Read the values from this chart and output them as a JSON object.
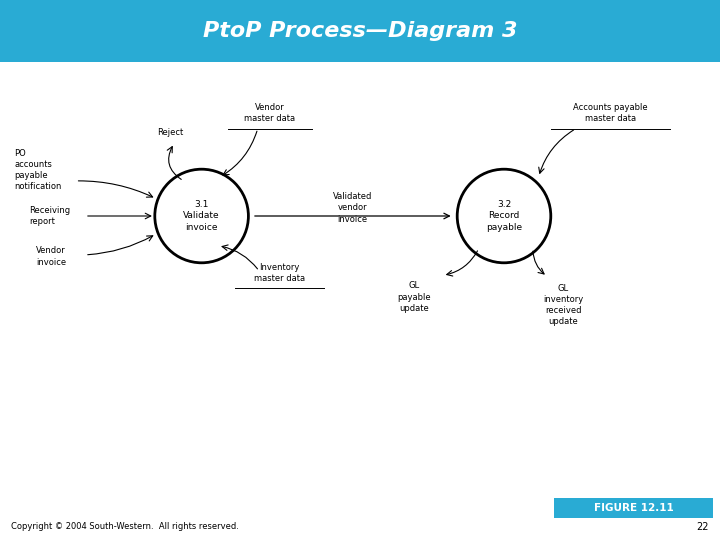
{
  "title": "PtoP Process—Diagram 3",
  "title_bg": "#29ABD4",
  "title_color": "#FFFFFF",
  "figure_bg": "#FFFFFF",
  "diagram_bg": "#FFFFFF",
  "copyright": "Copyright © 2004 South-Western.  All rights reserved.",
  "page_num": "22",
  "figure_label": "FIGURE 12.11",
  "figure_label_bg": "#29ABD4",
  "figure_label_color": "#FFFFFF",
  "c1x": 0.28,
  "c1y": 0.6,
  "cr": 0.065,
  "c1label": "3.1\nValidate\ninvoice",
  "c2x": 0.7,
  "c2y": 0.6,
  "c2r": 0.065,
  "c2label": "3.2\nRecord\npayable"
}
